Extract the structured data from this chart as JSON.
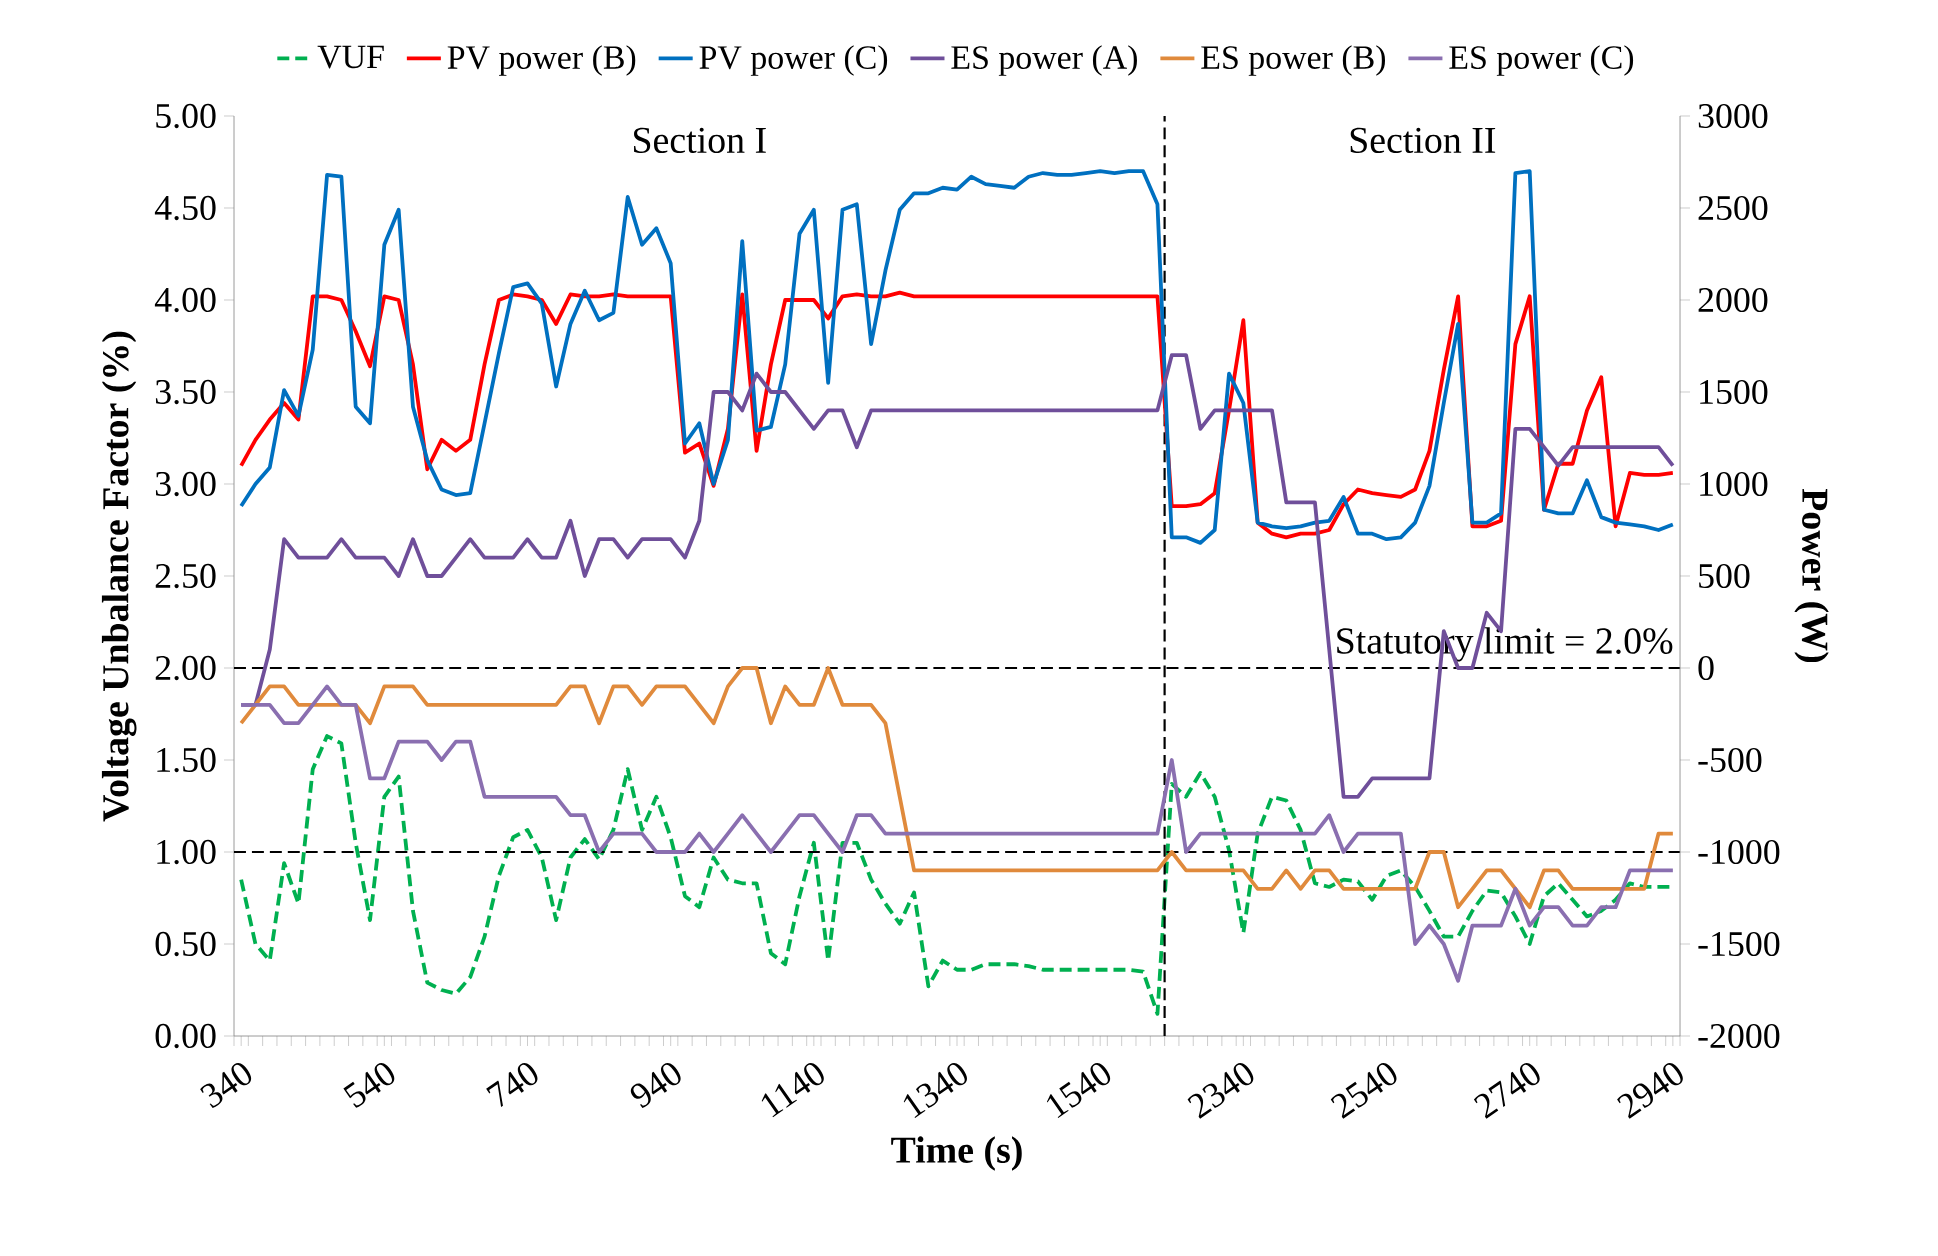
{
  "chart_data": {
    "type": "line",
    "xlabel": "Time (s)",
    "ylabel": "Voltage Unbalance Factor (%)",
    "y2label": "Power (W)",
    "categories": [
      "340",
      null,
      null,
      null,
      null,
      null,
      null,
      null,
      null,
      null,
      "540",
      null,
      null,
      null,
      null,
      null,
      null,
      null,
      null,
      null,
      "740",
      null,
      null,
      null,
      null,
      null,
      null,
      null,
      null,
      null,
      "940",
      null,
      null,
      null,
      null,
      null,
      null,
      null,
      null,
      null,
      "1140",
      null,
      null,
      null,
      null,
      null,
      null,
      null,
      null,
      null,
      "1340",
      null,
      null,
      null,
      null,
      null,
      null,
      null,
      null,
      null,
      "1540",
      null,
      null,
      null,
      null,
      null,
      null,
      null,
      null,
      null,
      "2340",
      null,
      null,
      null,
      null,
      null,
      null,
      null,
      null,
      null,
      "2540",
      null,
      null,
      null,
      null,
      null,
      null,
      null,
      null,
      null,
      "2740",
      null,
      null,
      null,
      null,
      null,
      null,
      null,
      null,
      null,
      "2940"
    ],
    "ylim": [
      0,
      5
    ],
    "yticks": [
      {
        "value": 0,
        "label": "0.00"
      },
      {
        "value": 0.5,
        "label": "0.50"
      },
      {
        "value": 1,
        "label": "1.00"
      },
      {
        "value": 1.5,
        "label": "1.50"
      },
      {
        "value": 2,
        "label": "2.00"
      },
      {
        "value": 2.5,
        "label": "2.50"
      },
      {
        "value": 3,
        "label": "3.00"
      },
      {
        "value": 3.5,
        "label": "3.50"
      },
      {
        "value": 4,
        "label": "4.00"
      },
      {
        "value": 4.5,
        "label": "4.50"
      },
      {
        "value": 5,
        "label": "5.00"
      }
    ],
    "y2lim": [
      -2000,
      3000
    ],
    "y2ticks": [
      -2000,
      -1500,
      -1000,
      -500,
      0,
      500,
      1000,
      1500,
      2000,
      2500,
      3000
    ],
    "legend": "top",
    "series": [
      {
        "name": "VUF",
        "color": "#00b050",
        "line_style": "dashed",
        "values": [
          0.85,
          0.5,
          0.41,
          0.94,
          0.72,
          1.45,
          1.63,
          1.59,
          1.05,
          0.63,
          1.3,
          1.41,
          0.68,
          0.29,
          0.25,
          0.23,
          0.32,
          0.54,
          0.87,
          1.08,
          1.12,
          0.97,
          0.63,
          0.97,
          1.07,
          0.96,
          1.12,
          1.45,
          1.12,
          1.3,
          1.08,
          0.76,
          0.7,
          0.97,
          0.85,
          0.83,
          0.83,
          0.45,
          0.39,
          0.76,
          1.05,
          0.41,
          1.05,
          1.05,
          0.85,
          0.72,
          0.61,
          0.78,
          0.27,
          0.41,
          0.36,
          0.36,
          0.39,
          0.39,
          0.39,
          0.38,
          0.36,
          0.36,
          0.36,
          0.36,
          0.36,
          0.36,
          0.36,
          0.35,
          0.12,
          1.37,
          1.3,
          1.43,
          1.3,
          1.01,
          0.56,
          1.1,
          1.3,
          1.28,
          1.12,
          0.83,
          0.81,
          0.85,
          0.84,
          0.74,
          0.87,
          0.9,
          0.81,
          0.68,
          0.54,
          0.54,
          0.68,
          0.79,
          0.78,
          0.65,
          0.5,
          0.76,
          0.83,
          0.74,
          0.65,
          0.68,
          0.74,
          0.83,
          0.81,
          0.81,
          0.81
        ]
      },
      {
        "name": "PV power (B)",
        "color": "#ff0000",
        "axis": "y2",
        "values": [
          1100,
          1240,
          1350,
          1440,
          1350,
          2020,
          2020,
          2000,
          1830,
          1640,
          2020,
          2000,
          1650,
          1080,
          1240,
          1180,
          1240,
          1650,
          2000,
          2030,
          2020,
          2000,
          1870,
          2030,
          2020,
          2020,
          2030,
          2020,
          2020,
          2020,
          2020,
          1170,
          1220,
          990,
          1300,
          2030,
          1180,
          1650,
          2000,
          2000,
          2000,
          1900,
          2020,
          2030,
          2020,
          2020,
          2040,
          2020,
          2020,
          2020,
          2020,
          2020,
          2020,
          2020,
          2020,
          2020,
          2020,
          2020,
          2020,
          2020,
          2020,
          2020,
          2020,
          2020,
          2020,
          880,
          880,
          890,
          950,
          1400,
          1890,
          790,
          730,
          710,
          730,
          730,
          750,
          890,
          970,
          950,
          940,
          930,
          970,
          1180,
          1620,
          2020,
          770,
          770,
          800,
          1760,
          2020,
          860,
          1110,
          1110,
          1400,
          1580,
          770,
          1060,
          1050,
          1050,
          1060
        ]
      },
      {
        "name": "PV power (C)",
        "color": "#0070c0",
        "axis": "y2",
        "values": [
          880,
          1000,
          1090,
          1510,
          1370,
          1730,
          2680,
          2670,
          1420,
          1330,
          2300,
          2490,
          1420,
          1130,
          970,
          940,
          950,
          1330,
          1710,
          2070,
          2090,
          1980,
          1530,
          1870,
          2050,
          1890,
          1930,
          2560,
          2300,
          2390,
          2200,
          1220,
          1330,
          1000,
          1240,
          2320,
          1290,
          1310,
          1650,
          2360,
          2490,
          1550,
          2490,
          2520,
          1760,
          2160,
          2490,
          2580,
          2580,
          2610,
          2600,
          2670,
          2630,
          2620,
          2610,
          2670,
          2690,
          2680,
          2680,
          2690,
          2700,
          2690,
          2700,
          2700,
          2520,
          710,
          710,
          680,
          750,
          1600,
          1440,
          790,
          770,
          760,
          770,
          790,
          800,
          930,
          730,
          730,
          700,
          710,
          790,
          990,
          1440,
          1870,
          790,
          790,
          840,
          2690,
          2700,
          860,
          840,
          840,
          1020,
          820,
          790,
          780,
          770,
          750,
          780
        ]
      },
      {
        "name": "ES power (A)",
        "color": "#6f4f9a",
        "axis": "y2",
        "values": [
          -200,
          -200,
          100,
          700,
          600,
          600,
          600,
          700,
          600,
          600,
          600,
          500,
          700,
          500,
          500,
          600,
          700,
          600,
          600,
          600,
          700,
          600,
          600,
          800,
          500,
          700,
          700,
          600,
          700,
          700,
          700,
          600,
          800,
          1500,
          1500,
          1400,
          1600,
          1500,
          1500,
          1400,
          1300,
          1400,
          1400,
          1200,
          1400,
          1400,
          1400,
          1400,
          1400,
          1400,
          1400,
          1400,
          1400,
          1400,
          1400,
          1400,
          1400,
          1400,
          1400,
          1400,
          1400,
          1400,
          1400,
          1400,
          1400,
          1700,
          1700,
          1300,
          1400,
          1400,
          1400,
          1400,
          1400,
          900,
          900,
          900,
          100,
          -700,
          -700,
          -600,
          -600,
          -600,
          -600,
          -600,
          200,
          0,
          0,
          300,
          200,
          1300,
          1300,
          1200,
          1100,
          1200,
          1200,
          1200,
          1200,
          1200,
          1200,
          1200,
          1100
        ]
      },
      {
        "name": "ES power (B)",
        "color": "#e08a3c",
        "axis": "y2",
        "values": [
          -300,
          -200,
          -100,
          -100,
          -200,
          -200,
          -200,
          -200,
          -200,
          -300,
          -100,
          -100,
          -100,
          -200,
          -200,
          -200,
          -200,
          -200,
          -200,
          -200,
          -200,
          -200,
          -200,
          -100,
          -100,
          -300,
          -100,
          -100,
          -200,
          -100,
          -100,
          -100,
          -200,
          -300,
          -100,
          0,
          0,
          -300,
          -100,
          -200,
          -200,
          0,
          -200,
          -200,
          -200,
          -300,
          -700,
          -1100,
          -1100,
          -1100,
          -1100,
          -1100,
          -1100,
          -1100,
          -1100,
          -1100,
          -1100,
          -1100,
          -1100,
          -1100,
          -1100,
          -1100,
          -1100,
          -1100,
          -1100,
          -1000,
          -1100,
          -1100,
          -1100,
          -1100,
          -1100,
          -1200,
          -1200,
          -1100,
          -1200,
          -1100,
          -1100,
          -1200,
          -1200,
          -1200,
          -1200,
          -1200,
          -1200,
          -1000,
          -1000,
          -1300,
          -1200,
          -1100,
          -1100,
          -1200,
          -1300,
          -1100,
          -1100,
          -1200,
          -1200,
          -1200,
          -1200,
          -1200,
          -1200,
          -900,
          -900
        ]
      },
      {
        "name": "ES power (C)",
        "color": "#8a6fb0",
        "axis": "y2",
        "values": [
          -200,
          -200,
          -200,
          -300,
          -300,
          -200,
          -100,
          -200,
          -200,
          -600,
          -600,
          -400,
          -400,
          -400,
          -500,
          -400,
          -400,
          -700,
          -700,
          -700,
          -700,
          -700,
          -700,
          -800,
          -800,
          -1000,
          -900,
          -900,
          -900,
          -1000,
          -1000,
          -1000,
          -900,
          -1000,
          -900,
          -800,
          -900,
          -1000,
          -900,
          -800,
          -800,
          -900,
          -1000,
          -800,
          -800,
          -900,
          -900,
          -900,
          -900,
          -900,
          -900,
          -900,
          -900,
          -900,
          -900,
          -900,
          -900,
          -900,
          -900,
          -900,
          -900,
          -900,
          -900,
          -900,
          -900,
          -500,
          -1000,
          -900,
          -900,
          -900,
          -900,
          -900,
          -900,
          -900,
          -900,
          -900,
          -800,
          -1000,
          -900,
          -900,
          -900,
          -900,
          -1500,
          -1400,
          -1500,
          -1700,
          -1400,
          -1400,
          -1400,
          -1200,
          -1400,
          -1300,
          -1300,
          -1400,
          -1400,
          -1300,
          -1300,
          -1100,
          -1100,
          -1100,
          -1100
        ]
      }
    ],
    "ref_lines": [
      {
        "axis": "y",
        "value": 2.0,
        "label": "Statutory limit = 2.0%",
        "line_style": "dashed",
        "color": "#000000"
      },
      {
        "axis": "y",
        "value": 1.0,
        "line_style": "dashed",
        "color": "#000000"
      }
    ],
    "annotations": [
      "Section I",
      "Section II"
    ]
  }
}
